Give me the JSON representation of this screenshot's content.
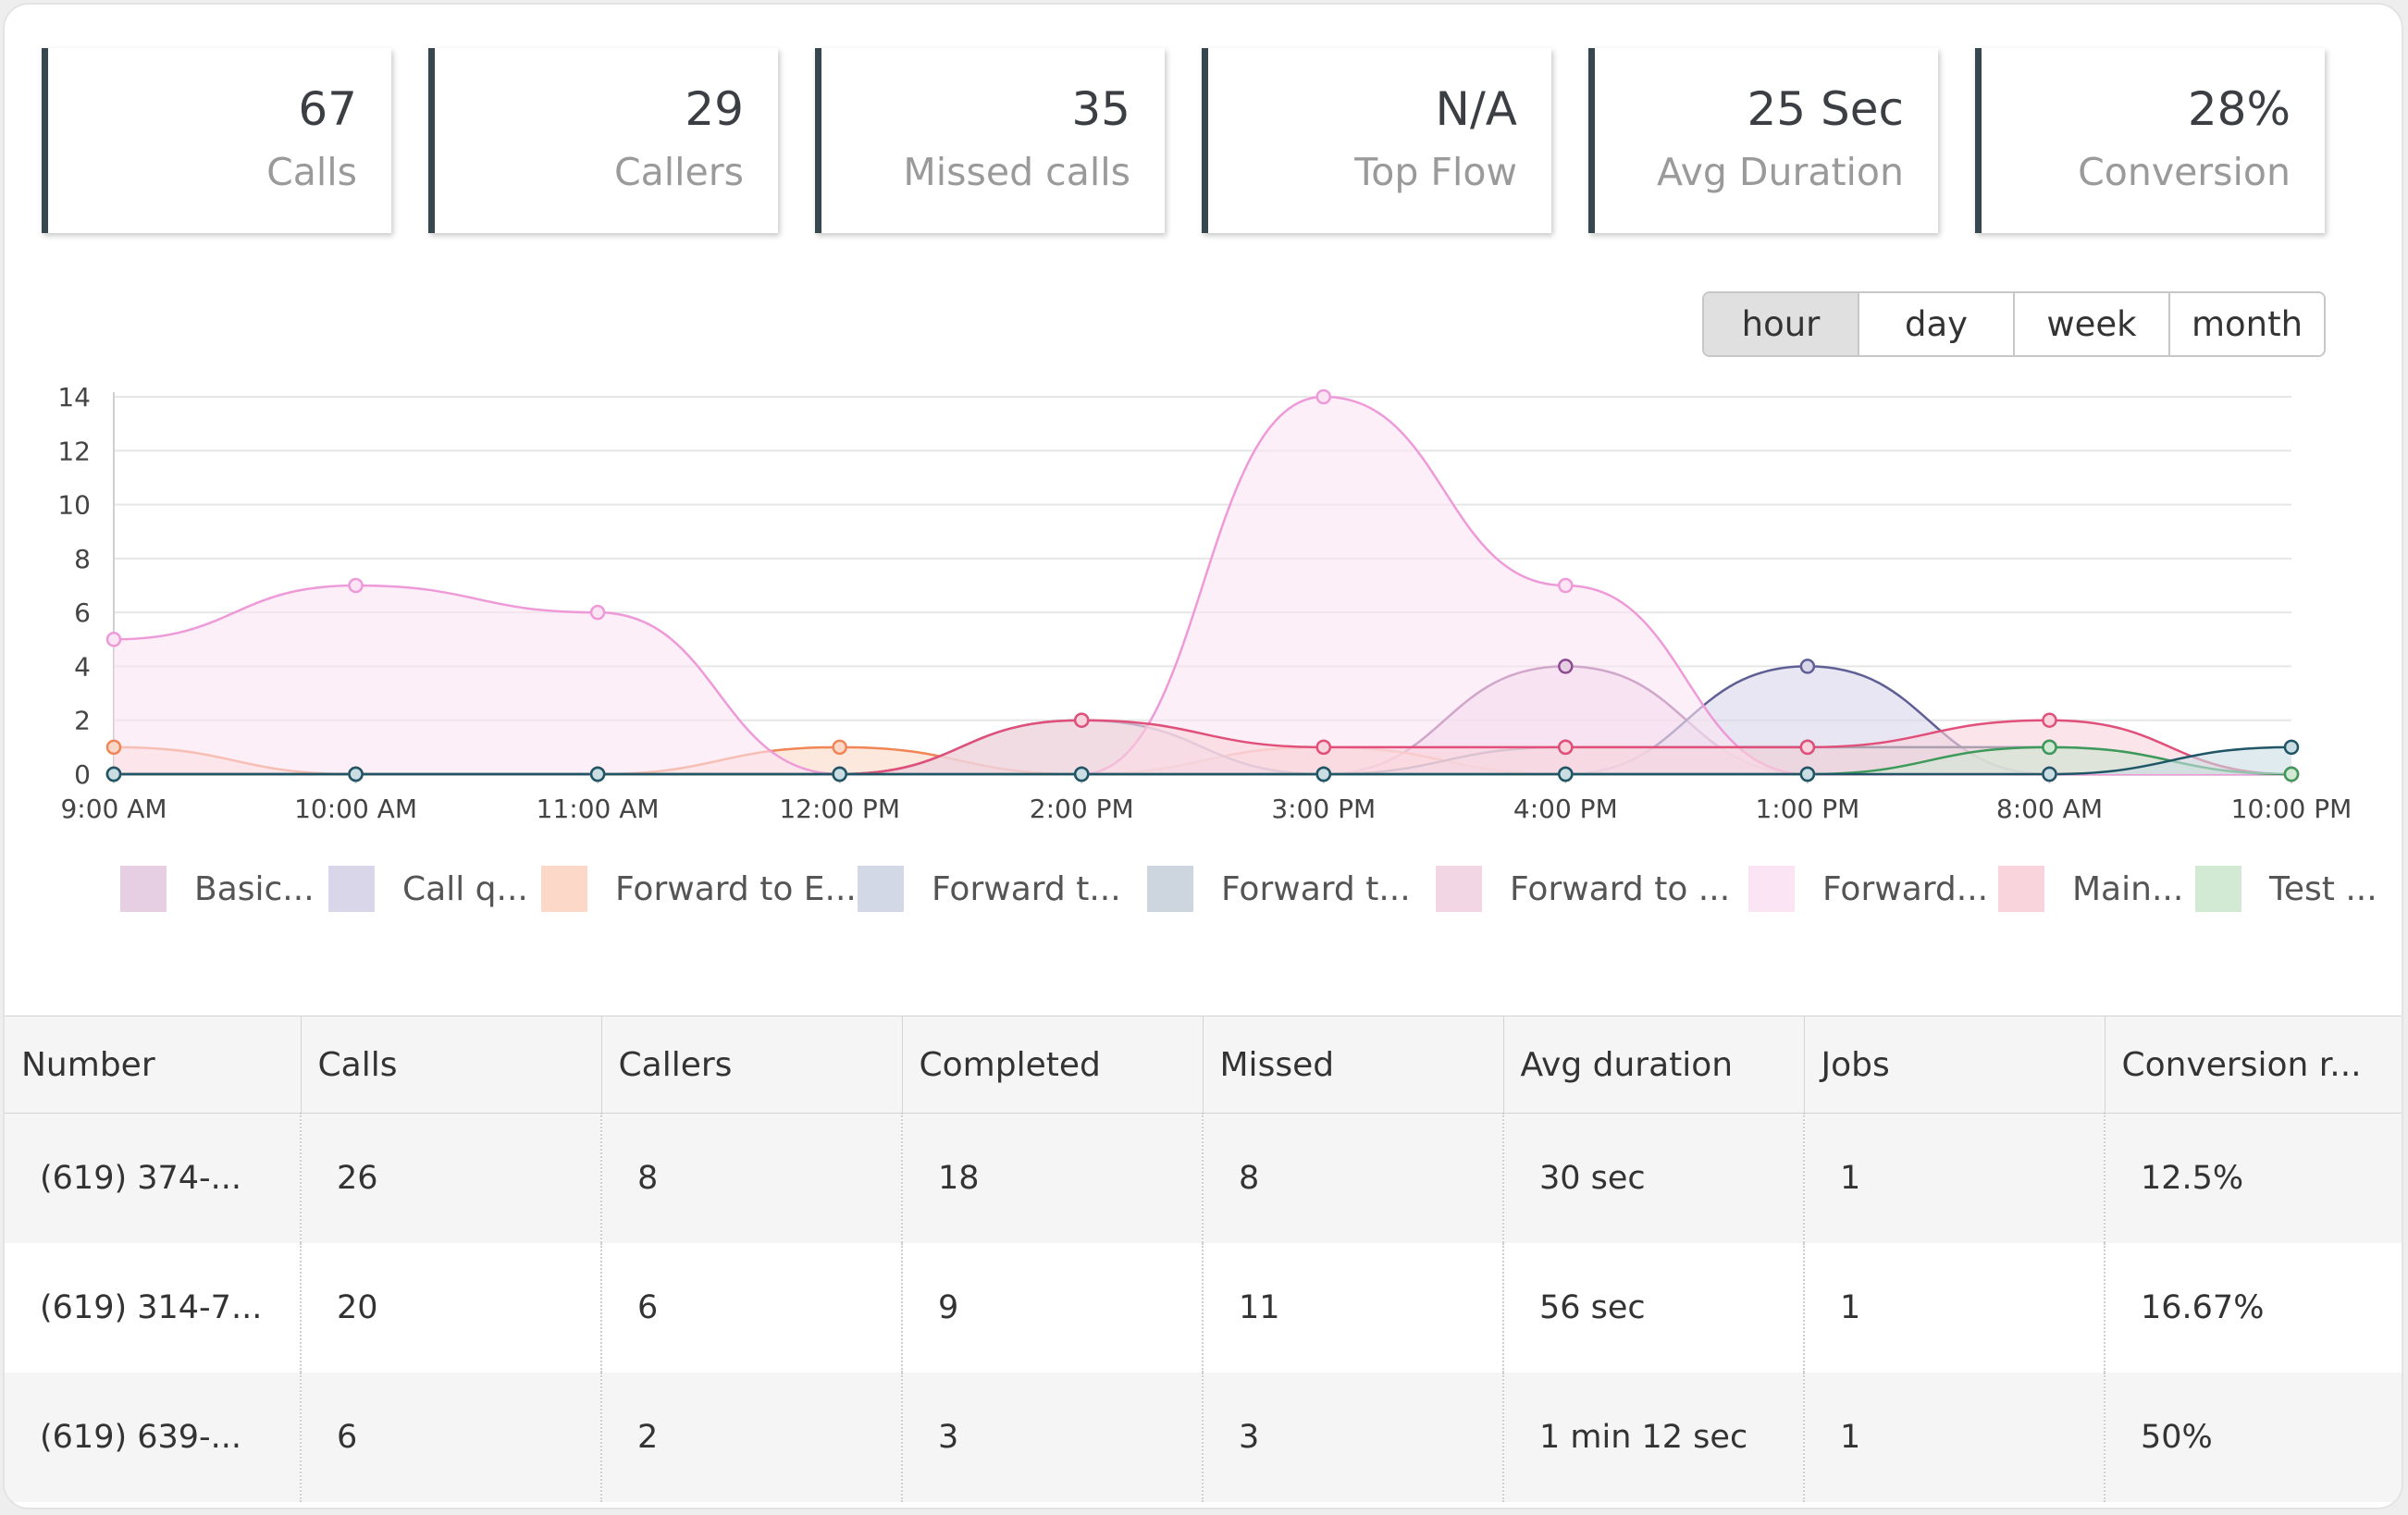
{
  "stats": [
    {
      "value": "67",
      "label": "Calls"
    },
    {
      "value": "29",
      "label": "Callers"
    },
    {
      "value": "35",
      "label": "Missed calls"
    },
    {
      "value": "N/A",
      "label": "Top Flow"
    },
    {
      "value": "25 Sec",
      "label": "Avg Duration"
    },
    {
      "value": "28%",
      "label": "Conversion"
    }
  ],
  "period_toggle": {
    "options": [
      "hour",
      "day",
      "week",
      "month"
    ],
    "selected": "hour"
  },
  "chart_data": {
    "type": "area",
    "categories": [
      "9:00 AM",
      "10:00 AM",
      "11:00 AM",
      "12:00 PM",
      "2:00 PM",
      "3:00 PM",
      "4:00 PM",
      "1:00 PM",
      "8:00 AM",
      "10:00 PM"
    ],
    "ylim": [
      0,
      14
    ],
    "yticks": [
      0,
      2,
      4,
      6,
      8,
      10,
      12,
      14
    ],
    "grid": true,
    "legend_position": "bottom",
    "series": [
      {
        "name": "Basic...",
        "line": "#8e4a8e",
        "fill": "#e6cfe3",
        "values": [
          0,
          0,
          0,
          0,
          0,
          0,
          4,
          0,
          0,
          0
        ]
      },
      {
        "name": "Call q...",
        "line": "#5f5f96",
        "fill": "#d9d6ea",
        "values": [
          0,
          0,
          0,
          0,
          0,
          0,
          0,
          4,
          0,
          0
        ]
      },
      {
        "name": "Forward to E...",
        "line": "#f08555",
        "fill": "#fbd8c8",
        "values": [
          1,
          0,
          0,
          1,
          0,
          1,
          0,
          0,
          0,
          0
        ]
      },
      {
        "name": "Forward t...",
        "line": "#6b78a6",
        "fill": "#d3d8e6",
        "values": [
          0,
          0,
          0,
          0,
          2,
          0,
          0,
          0,
          0,
          0
        ]
      },
      {
        "name": "Forward t...",
        "line": "#38506e",
        "fill": "#cdd5df",
        "values": [
          0,
          0,
          0,
          0,
          0,
          0,
          1,
          1,
          1,
          0
        ]
      },
      {
        "name": "Forward to ...",
        "line": "#d56a9c",
        "fill": "#f3d6e4",
        "values": [
          0,
          0,
          0,
          0,
          0,
          0,
          0,
          0,
          0,
          0
        ]
      },
      {
        "name": "Forward...",
        "line": "#ee9ad8",
        "fill": "#fbe4f4",
        "values": [
          5,
          7,
          6,
          0,
          0,
          14,
          7,
          0,
          0,
          0
        ]
      },
      {
        "name": "Main...",
        "line": "#e0507a",
        "fill": "#fad4dc",
        "values": [
          0,
          0,
          0,
          0,
          2,
          1,
          1,
          1,
          2,
          0
        ]
      },
      {
        "name": "Test ...",
        "line": "#3d9a5a",
        "fill": "#d2ead3",
        "values": [
          0,
          0,
          0,
          0,
          0,
          0,
          0,
          0,
          1,
          0
        ]
      },
      {
        "name": "",
        "line": "#1f5566",
        "fill": "#c9dde2",
        "values": [
          0,
          0,
          0,
          0,
          0,
          0,
          0,
          0,
          0,
          1
        ]
      }
    ]
  },
  "table": {
    "columns": [
      "Number",
      "Calls",
      "Callers",
      "Completed",
      "Missed",
      "Avg duration",
      "Jobs",
      "Conversion r..."
    ],
    "rows": [
      [
        "(619) 374-...",
        "26",
        "8",
        "18",
        "8",
        "30 sec",
        "1",
        "12.5%"
      ],
      [
        "(619) 314-7...",
        "20",
        "6",
        "9",
        "11",
        "56 sec",
        "1",
        "16.67%"
      ],
      [
        "(619) 639-...",
        "6",
        "2",
        "3",
        "3",
        "1 min 12 sec",
        "1",
        "50%"
      ]
    ]
  }
}
